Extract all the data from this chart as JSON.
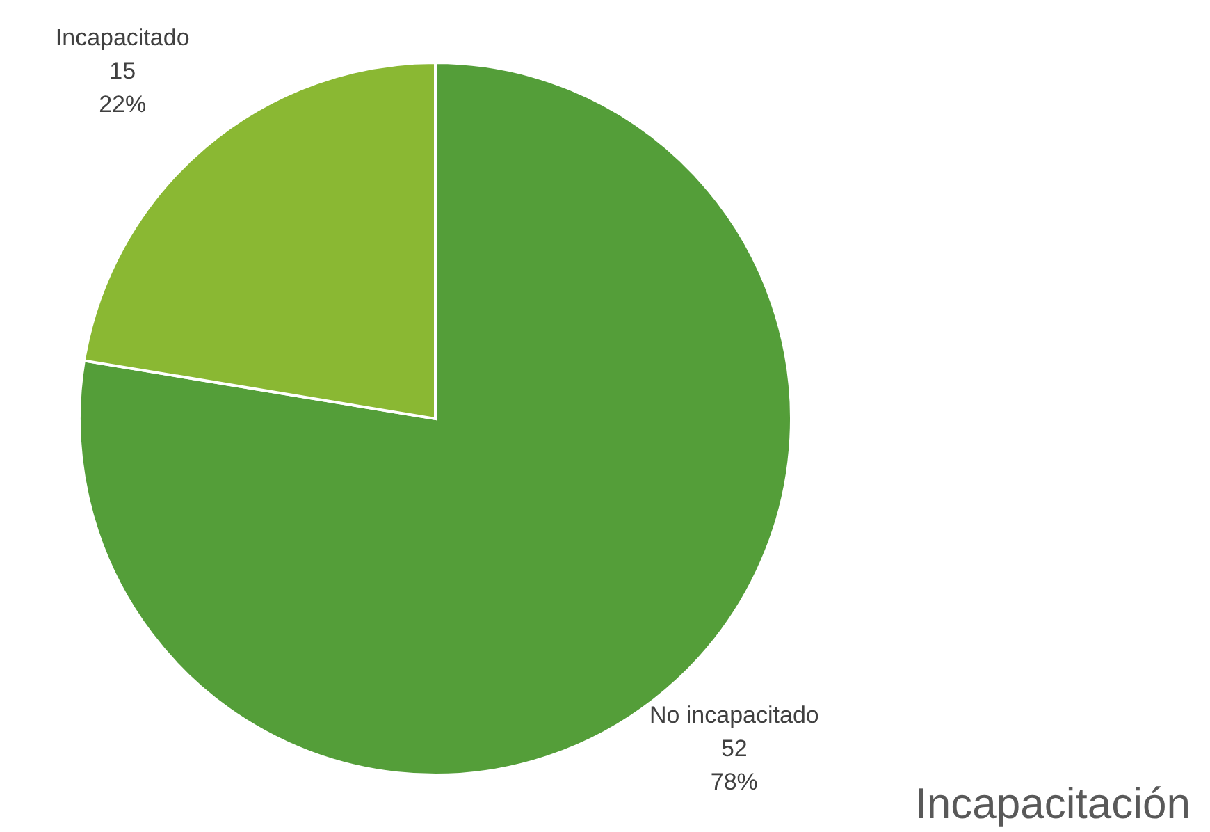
{
  "chart_data": {
    "type": "pie",
    "title": "Incapacitación",
    "categories": [
      "No incapacitado",
      "Incapacitado"
    ],
    "values": [
      52,
      15
    ],
    "value_labels": [
      "52\n78%",
      "15\n22%"
    ],
    "colors": [
      "#549e39",
      "#8ab833"
    ],
    "legend": false
  }
}
